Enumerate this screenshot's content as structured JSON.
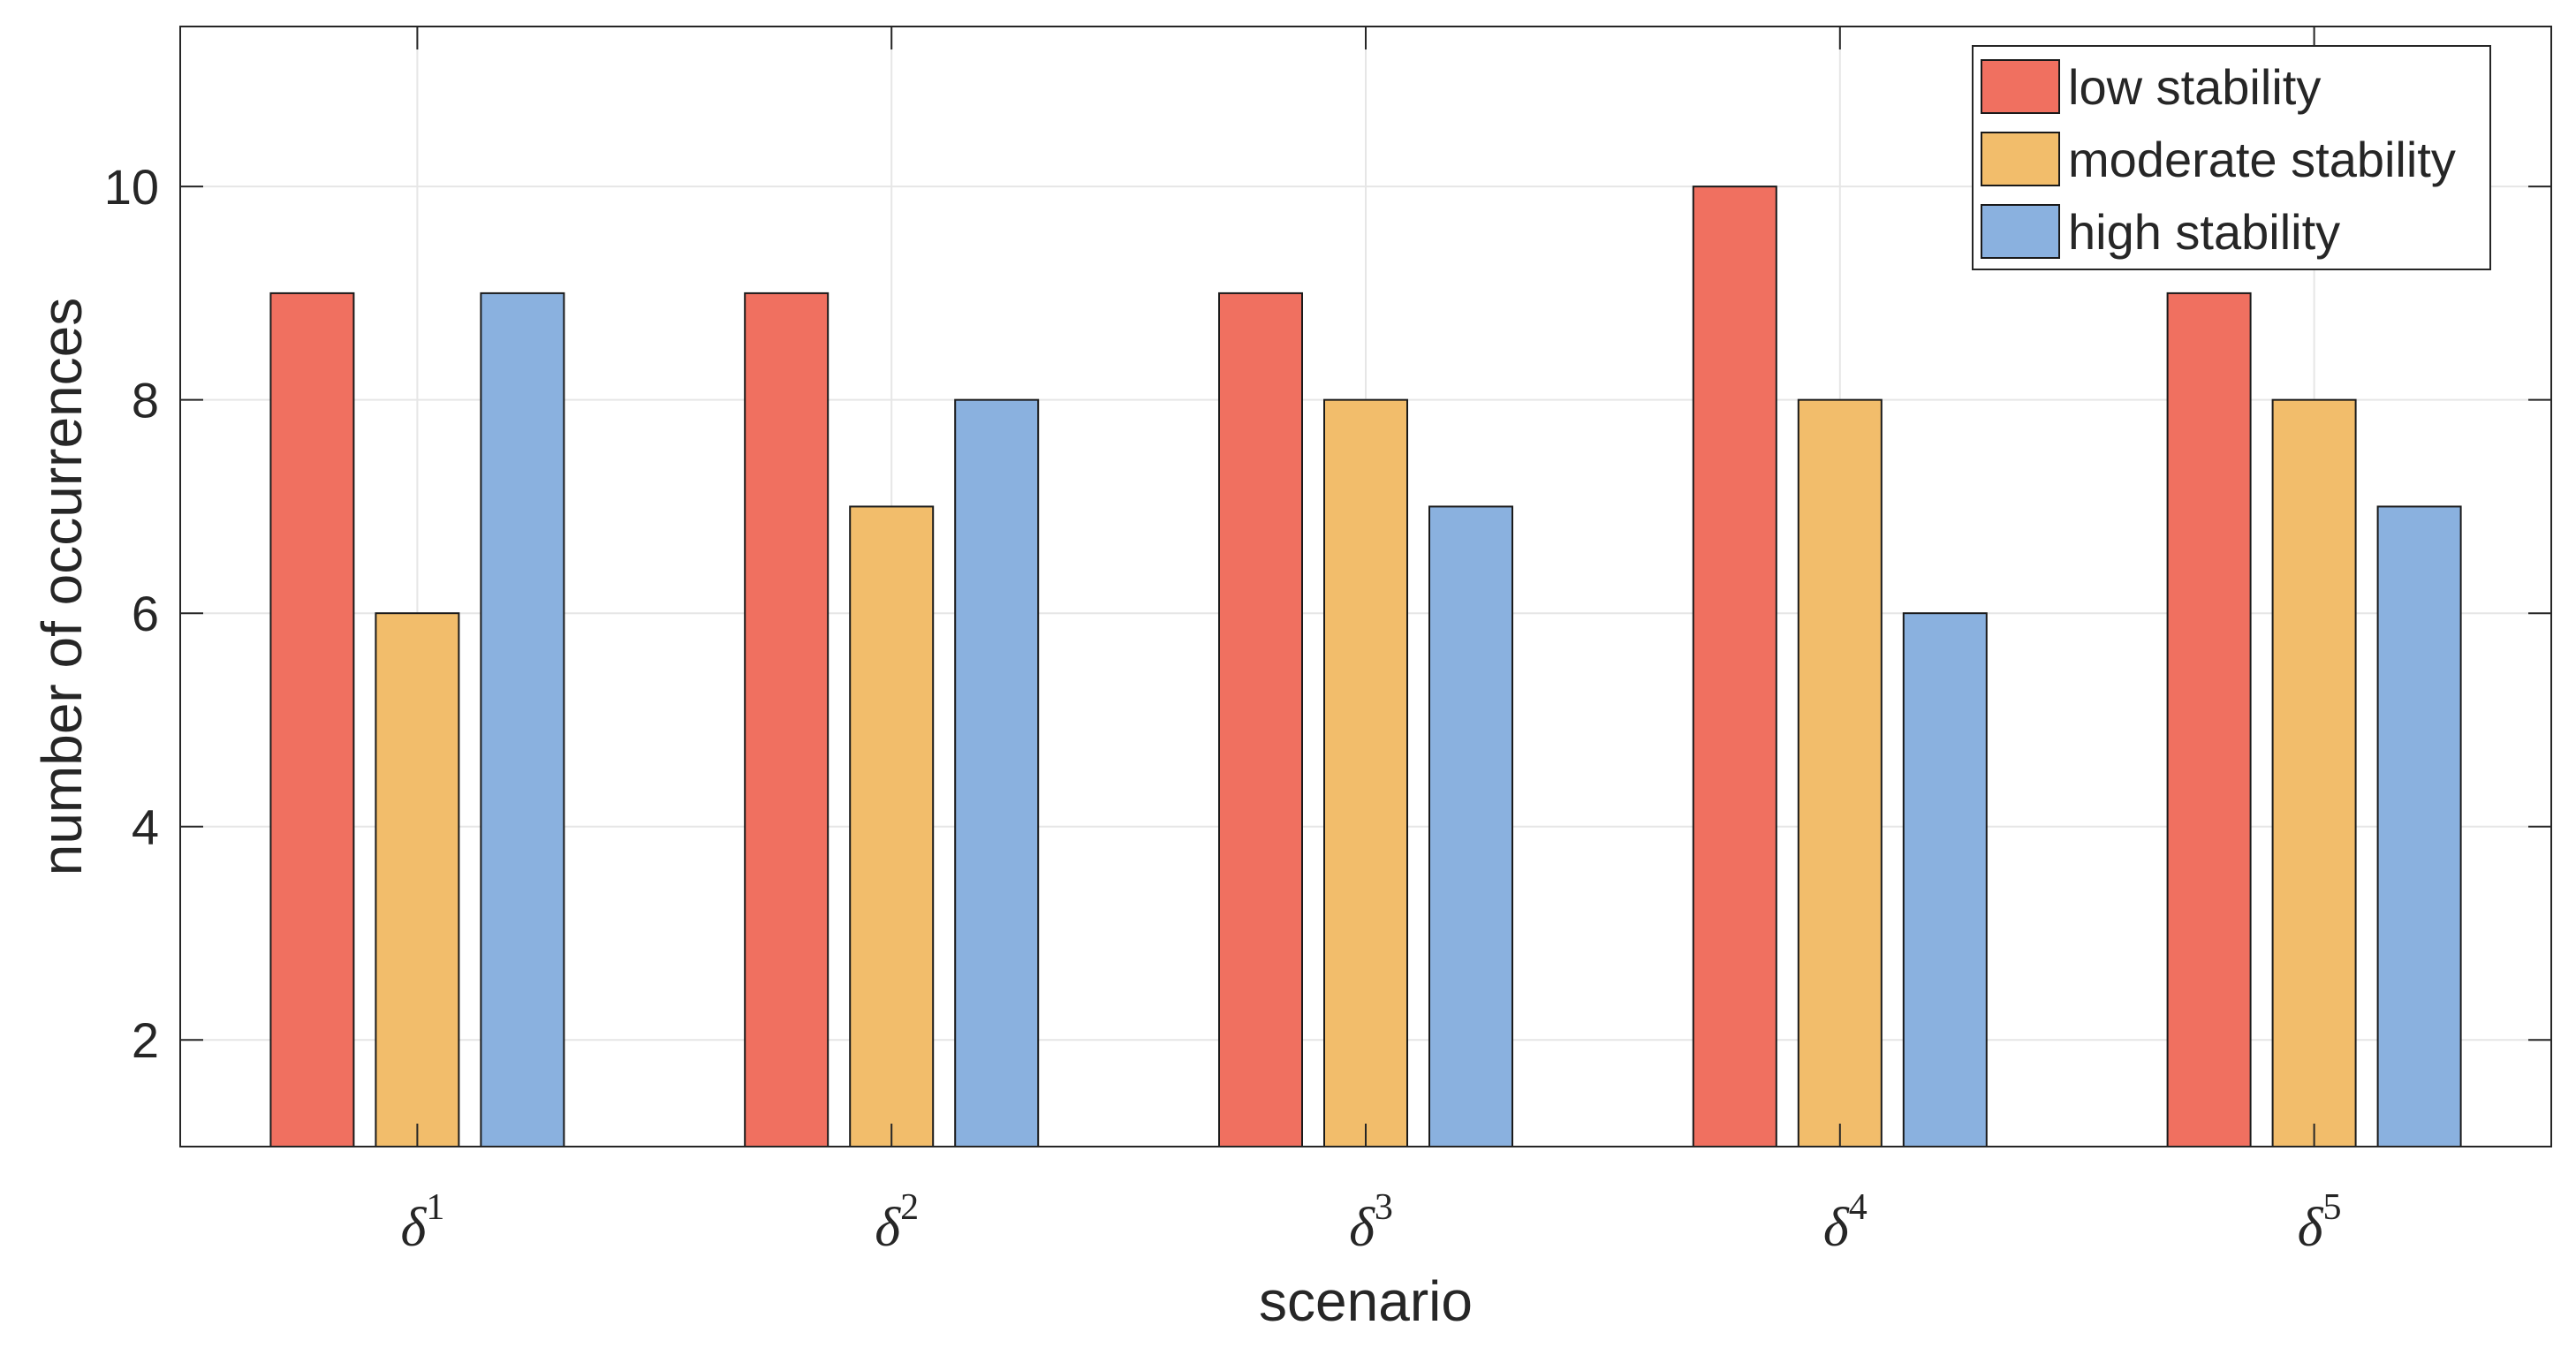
{
  "chart_data": {
    "type": "bar",
    "title": "",
    "xlabel": "scenario",
    "ylabel": "number of occurrences",
    "ylim": [
      1,
      11.5
    ],
    "yticks": [
      2,
      4,
      6,
      8,
      10
    ],
    "grid": true,
    "legend_position": "top-right",
    "categories": [
      {
        "base": "δ",
        "sup": "1"
      },
      {
        "base": "δ",
        "sup": "2"
      },
      {
        "base": "δ",
        "sup": "3"
      },
      {
        "base": "δ",
        "sup": "4"
      },
      {
        "base": "δ",
        "sup": "5"
      }
    ],
    "series": [
      {
        "name": "low stability",
        "color": "#F07060",
        "values": [
          9,
          9,
          9,
          10,
          9
        ]
      },
      {
        "name": "moderate stability",
        "color": "#F2BD6B",
        "values": [
          6,
          7,
          8,
          8,
          8
        ]
      },
      {
        "name": "high stability",
        "color": "#8AB1DF",
        "values": [
          9,
          8,
          7,
          6,
          7
        ]
      }
    ]
  }
}
